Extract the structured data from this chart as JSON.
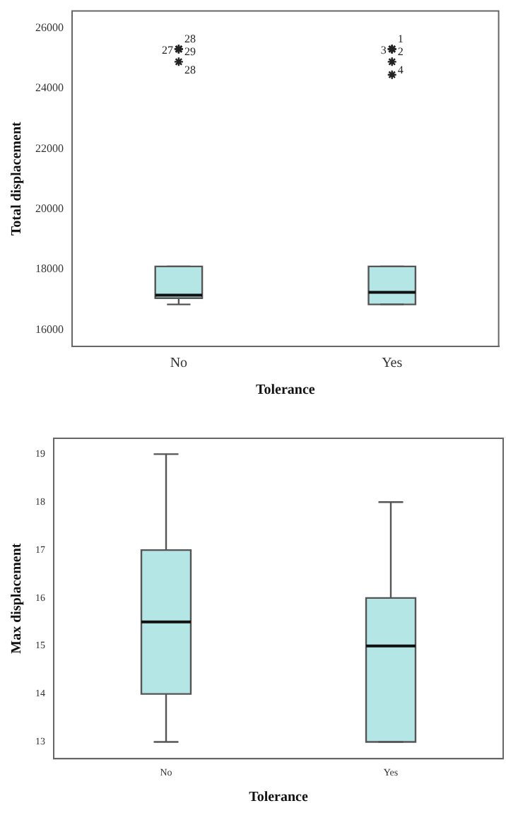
{
  "chart_data": [
    {
      "type": "box",
      "xlabel": "Tolerance",
      "ylabel": "Total displacement",
      "categories": [
        "No",
        "Yes"
      ],
      "color": "#b4e6e6",
      "marker": "star",
      "grid": false,
      "legend": false,
      "boxes": [
        {
          "low": 16840,
          "q1": 17050,
          "median": 17150,
          "q3": 18100,
          "high": 18100,
          "outliers": [
            25300,
            25300,
            25300,
            24880
          ]
        },
        {
          "low": 16840,
          "q1": 16840,
          "median": 17240,
          "q3": 18100,
          "high": 18100,
          "outliers": [
            25300,
            25300,
            25300,
            24880,
            24450
          ]
        }
      ],
      "ylim": [
        15450,
        26560
      ],
      "yticks": [
        16000,
        18000,
        20000,
        22000,
        24000,
        26000
      ],
      "annotations": [
        "28",
        "27",
        "29",
        "28",
        "1",
        "3",
        "2",
        "4"
      ]
    },
    {
      "type": "box",
      "xlabel": "Tolerance",
      "ylabel": "Max displacement",
      "categories": [
        "No",
        "Yes"
      ],
      "color": "#b4e6e6",
      "grid": false,
      "legend": false,
      "boxes": [
        {
          "low": 13,
          "q1": 14,
          "median": 15.5,
          "q3": 17,
          "high": 19
        },
        {
          "low": 13,
          "q1": 13,
          "median": 15,
          "q3": 16,
          "high": 18
        }
      ],
      "ylim": [
        12.65,
        19.33
      ],
      "yticks": [
        13,
        14,
        15,
        16,
        17,
        18,
        19
      ]
    }
  ]
}
